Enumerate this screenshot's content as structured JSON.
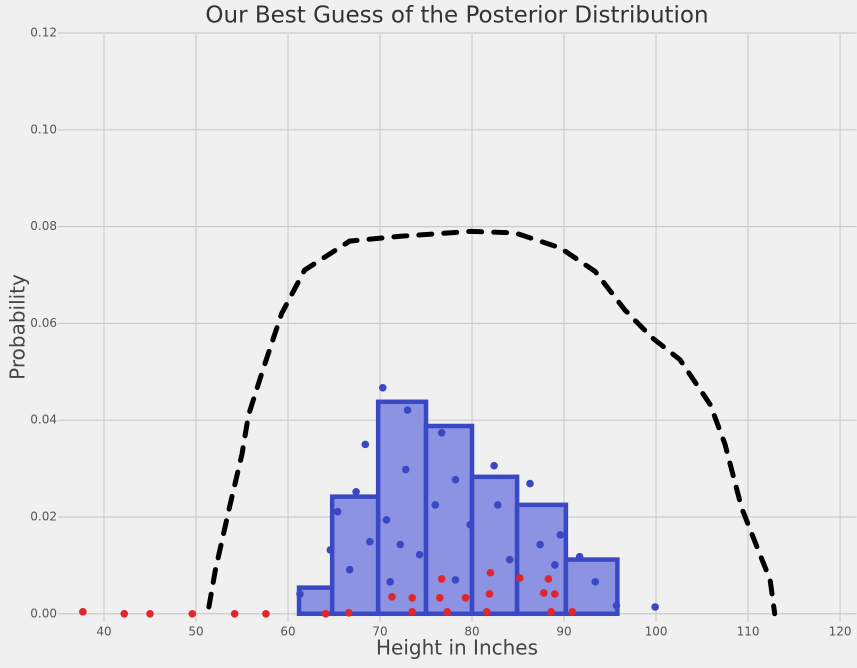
{
  "chart_data": {
    "type": "histogram",
    "title": "Our Best Guess of the Posterior Distribution",
    "xlabel": "Height in Inches",
    "ylabel": "Probability",
    "bins": [
      61.2,
      64.8,
      69.8,
      75.0,
      80.0,
      84.9,
      90.2,
      95.8
    ],
    "values": [
      0.0054,
      0.0242,
      0.0438,
      0.0388,
      0.0283,
      0.0225,
      0.0112
    ],
    "color": "#8b93e2",
    "edgecolor": "#3b48c4",
    "lines": [
      {
        "color": "#000000",
        "style": "dashed",
        "x": [
          51.4,
          52.1,
          53.7,
          55.0,
          55.7,
          57.2,
          59.3,
          61.8,
          66.7,
          72.2,
          79.8,
          84.7,
          89.6,
          93.4,
          96.6,
          99.6,
          102.6,
          105.9,
          107.5,
          109.3,
          111.1,
          112.4,
          112.9
        ],
        "y": [
          0.0014,
          0.009,
          0.0225,
          0.033,
          0.041,
          0.05,
          0.062,
          0.071,
          0.077,
          0.078,
          0.079,
          0.0787,
          0.0756,
          0.0707,
          0.0628,
          0.057,
          0.0525,
          0.0432,
          0.035,
          0.0219,
          0.0132,
          0.007,
          0.0
        ]
      }
    ],
    "scatter": [
      {
        "color": "#3b48c4",
        "x": [
          70.3,
          68.4,
          73.0,
          67.4,
          64.6,
          99.9,
          95.7,
          82.4,
          86.3,
          87.4,
          89.6,
          93.4,
          91.7,
          76.7,
          78.2,
          79.8,
          72.8,
          70.7,
          74.3,
          66.7,
          72.2,
          76.0,
          82.8,
          84.1,
          61.3,
          71.1,
          78.2,
          89.0,
          65.4,
          68.9
        ],
        "y": [
          0.0467,
          0.035,
          0.0421,
          0.0252,
          0.0132,
          0.0014,
          0.0017,
          0.0306,
          0.0269,
          0.0143,
          0.0163,
          0.0066,
          0.0118,
          0.0374,
          0.0277,
          0.0184,
          0.0298,
          0.0194,
          0.0122,
          0.0091,
          0.0143,
          0.0225,
          0.0225,
          0.0112,
          0.0041,
          0.0066,
          0.007,
          0.0101,
          0.0211,
          0.0149
        ]
      },
      {
        "color": "#e0262a",
        "x": [
          37.7,
          42.2,
          45.0,
          49.6,
          54.2,
          57.6,
          66.6,
          71.3,
          73.5,
          76.7,
          76.5,
          79.3,
          81.9,
          82.0,
          85.2,
          88.3,
          89.0,
          88.6,
          90.9,
          77.3,
          73.5,
          81.6,
          64.1,
          87.8
        ],
        "y": [
          0.0004,
          0.0,
          0.0,
          0.0,
          0.0,
          0.0,
          0.0002,
          0.0035,
          0.0033,
          0.0072,
          0.0033,
          0.0033,
          0.0041,
          0.0085,
          0.0074,
          0.0072,
          0.0041,
          0.0004,
          0.0004,
          0.0004,
          0.0004,
          0.0004,
          0.0,
          0.0043
        ]
      }
    ],
    "xlim": [
      35,
      121.8
    ],
    "ylim": [
      -0.0017,
      0.12
    ],
    "xticks": [
      40,
      50,
      60,
      70,
      80,
      90,
      100,
      110,
      120
    ],
    "yticks": [
      {
        "value": 0.0,
        "label": "0.00"
      },
      {
        "value": 0.02,
        "label": "0.02"
      },
      {
        "value": 0.04,
        "label": "0.04"
      },
      {
        "value": 0.06,
        "label": "0.06"
      },
      {
        "value": 0.08,
        "label": "0.08"
      },
      {
        "value": 0.1,
        "label": "0.10"
      },
      {
        "value": 0.12,
        "label": "0.12"
      }
    ],
    "grid": true
  }
}
